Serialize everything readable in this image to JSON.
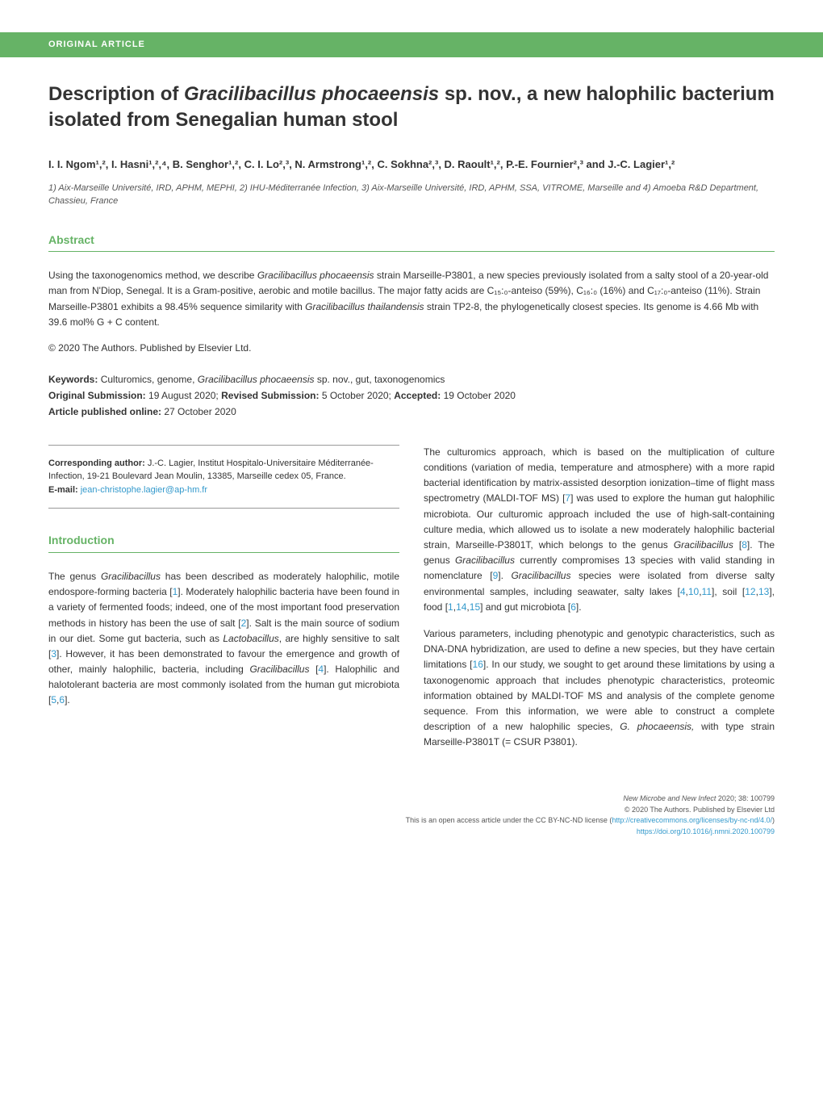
{
  "header": {
    "label": "ORIGINAL ARTICLE",
    "bg_color": "#66b366",
    "text_color": "#ffffff"
  },
  "title": {
    "prefix": "Description of ",
    "italic_species": "Gracilibacillus phocaeensis",
    "suffix": " sp. nov., a new halophilic bacterium isolated from Senegalian human stool"
  },
  "authors_line": "I. I. Ngom¹,², I. Hasni¹,²,⁴, B. Senghor¹,², C. I. Lo²,³, N. Armstrong¹,², C. Sokhna²,³, D. Raoult¹,², P.-E. Fournier²,³ and J.-C. Lagier¹,²",
  "affiliations": "1) Aix-Marseille Université, IRD, APHM, MEPHI, 2) IHU-Méditerranée Infection, 3) Aix-Marseille Université, IRD, APHM, SSA, VITROME, Marseille and 4) Amoeba R&D Department, Chassieu, France",
  "abstract": {
    "heading": "Abstract",
    "p1_a": "Using the taxonogenomics method, we describe ",
    "p1_b_italic": "Gracilibacillus phocaeensis",
    "p1_c": " strain Marseille-P3801, a new species previously isolated from a salty stool of a 20-year-old man from N'Diop, Senegal. It is a Gram-positive, aerobic and motile bacillus. The major fatty acids are C₁₅:₀-anteiso (59%), C₁₆:₀ (16%) and C₁₇:₀-anteiso (11%). Strain Marseille-P3801 exhibits a 98.45% sequence similarity with ",
    "p1_d_italic": "Gracilibacillus thailandensis",
    "p1_e": " strain TP2-8, the phylogenetically closest species. Its genome is 4.66 Mb with 39.6 mol% G + C content.",
    "copyright": "© 2020 The Authors. Published by Elsevier Ltd."
  },
  "keywords": {
    "kw_label": "Keywords:",
    "kw_text_a": " Culturomics, genome, ",
    "kw_text_b_italic": "Gracilibacillus phocaeensis",
    "kw_text_c": " sp. nov., gut, taxonogenomics",
    "orig_label": "Original Submission:",
    "orig_text": " 19 August 2020; ",
    "rev_label": "Revised Submission:",
    "rev_text": " 5 October 2020; ",
    "acc_label": "Accepted:",
    "acc_text": " 19 October 2020",
    "pub_label": "Article published online:",
    "pub_text": " 27 October 2020"
  },
  "correspondence": {
    "label": "Corresponding author:",
    "name": " J.-C. Lagier, Institut Hospitalo-Universitaire Méditerranée-Infection, 19-21 Boulevard Jean Moulin, 13385, Marseille cedex 05, France.",
    "email_label": "E-mail: ",
    "email": "jean-christophe.lagier@ap-hm.fr"
  },
  "introduction": {
    "heading": "Introduction"
  },
  "col_left": {
    "p1_a": "The genus ",
    "p1_b_italic": "Gracilibacillus",
    "p1_c": " has been described as moderately halophilic, motile endospore-forming bacteria [",
    "p1_ref1": "1",
    "p1_d": "]. Moderately halophilic bacteria have been found in a variety of fermented foods; indeed, one of the most important food preservation methods in history has been the use of salt [",
    "p1_ref2": "2",
    "p1_e": "]. Salt is the main source of sodium in our diet. Some gut bacteria, such as ",
    "p1_f_italic": "Lactobacillus",
    "p1_g": ", are highly sensitive to salt [",
    "p1_ref3": "3",
    "p1_h": "]. However, it has been demonstrated to favour the emergence and growth of other, mainly halophilic, bacteria, including ",
    "p1_i_italic": "Gracilibacillus",
    "p1_j": " [",
    "p1_ref4": "4",
    "p1_k": "]. Halophilic and halotolerant bacteria are most commonly isolated from the human gut microbiota [",
    "p1_ref5": "5",
    "p1_comma": ",",
    "p1_ref6": "6",
    "p1_l": "]."
  },
  "col_right": {
    "p1_a": "The culturomics approach, which is based on the multiplication of culture conditions (variation of media, temperature and atmosphere) with a more rapid bacterial identification by matrix-assisted desorption ionization–time of flight mass spectrometry (MALDI-TOF MS) [",
    "p1_ref7": "7",
    "p1_b": "] was used to explore the human gut halophilic microbiota. Our culturomic approach included the use of high-salt-containing culture media, which allowed us to isolate a new moderately halophilic bacterial strain, Marseille-P3801T, which belongs to the genus ",
    "p1_c_italic": "Gracilibacillus",
    "p1_d": " [",
    "p1_ref8": "8",
    "p1_e": "]. The genus ",
    "p1_f_italic": "Gracilibacillus",
    "p1_g": " currently compromises 13 species with valid standing in nomenclature [",
    "p1_ref9": "9",
    "p1_h": "]. ",
    "p1_i_italic": "Gracilibacillus",
    "p1_j": " species were isolated from diverse salty environmental samples, including seawater, salty lakes [",
    "p1_ref4": "4",
    "p1_k_c1": ",",
    "p1_ref10": "10",
    "p1_k_c2": ",",
    "p1_ref11": "11",
    "p1_l": "], soil [",
    "p1_ref12": "12",
    "p1_l_c1": ",",
    "p1_ref13": "13",
    "p1_m": "], food [",
    "p1_ref1": "1",
    "p1_m_c1": ",",
    "p1_ref14": "14",
    "p1_m_c2": ",",
    "p1_ref15": "15",
    "p1_n": "] and gut microbiota [",
    "p1_ref6": "6",
    "p1_o": "].",
    "p2_a": "Various parameters, including phenotypic and genotypic characteristics, such as DNA-DNA hybridization, are used to define a new species, but they have certain limitations [",
    "p2_ref16": "16",
    "p2_b": "]. In our study, we sought to get around these limitations by using a taxonogenomic approach that includes phenotypic characteristics, proteomic information obtained by MALDI-TOF MS and analysis of the complete genome sequence. From this information, we were able to construct a complete description of a new halophilic species, ",
    "p2_c_italic": "G. phocaeensis,",
    "p2_d": " with type strain Marseille-P3801T (= CSUR P3801)."
  },
  "footer": {
    "line1_italic": "New Microbe and New Infect",
    "line1_rest": " 2020; 38: 100799",
    "line2": "© 2020 The Authors. Published by Elsevier Ltd",
    "line3_a": "This is an open access article under the CC BY-NC-ND license (",
    "line3_link": "http://creativecommons.org/licenses/by-nc-nd/4.0/",
    "line3_b": ")",
    "line4": "https://doi.org/10.1016/j.nmni.2020.100799"
  },
  "colors": {
    "accent_green": "#66b366",
    "link_blue": "#3399cc",
    "text": "#333333"
  }
}
